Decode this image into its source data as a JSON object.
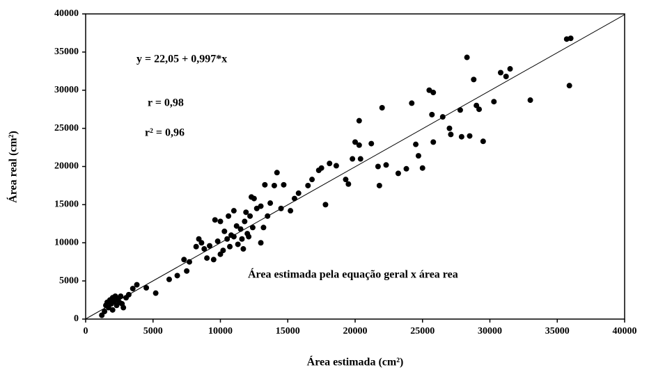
{
  "chart_data": {
    "type": "scatter",
    "x_label": "Área estimada (cm²)",
    "y_label": "Área real (cm²)",
    "annotations": [
      "y = 22,05 + 0,997*x",
      "r = 0,98",
      "r² = 0,96",
      "Área estimada pela equação geral x área rea"
    ],
    "xlim": [
      0,
      40000
    ],
    "ylim": [
      0,
      40000
    ],
    "xticks": [
      0,
      5000,
      10000,
      15000,
      20000,
      25000,
      30000,
      35000,
      40000
    ],
    "yticks": [
      0,
      5000,
      10000,
      15000,
      20000,
      25000,
      30000,
      35000,
      40000
    ],
    "grid": false,
    "color": "#000000",
    "trendline": {
      "intercept": 22.05,
      "slope": 0.997
    },
    "x": [
      1200,
      1400,
      1500,
      1600,
      1700,
      1800,
      1900,
      2000,
      2000,
      2100,
      2200,
      2300,
      2400,
      2500,
      2600,
      2700,
      2800,
      3000,
      3200,
      3500,
      3800,
      4500,
      5200,
      6200,
      6800,
      7300,
      7700,
      7500,
      8200,
      8400,
      8600,
      8800,
      9000,
      9200,
      9500,
      9600,
      9800,
      10000,
      10000,
      10200,
      10300,
      10500,
      10600,
      10700,
      10800,
      11000,
      11000,
      11200,
      11300,
      11500,
      11600,
      11700,
      11800,
      11900,
      12000,
      12100,
      12200,
      12300,
      12400,
      12500,
      12700,
      13000,
      13000,
      13200,
      13300,
      13500,
      13700,
      14000,
      14200,
      14500,
      14700,
      15200,
      15500,
      15800,
      16500,
      16800,
      17300,
      17500,
      17800,
      18100,
      18600,
      19300,
      19500,
      19800,
      20000,
      20300,
      20300,
      20400,
      21200,
      21700,
      21800,
      22000,
      22300,
      23200,
      23800,
      24200,
      24500,
      24700,
      25000,
      25500,
      25800,
      25700,
      25800,
      26500,
      27000,
      27100,
      27800,
      27900,
      28300,
      28500,
      28800,
      29000,
      29200,
      29500,
      30300,
      30800,
      31200,
      31500,
      33000,
      35700,
      36000,
      35900
    ],
    "values": [
      500,
      1000,
      1800,
      2200,
      1500,
      2500,
      2000,
      2800,
      1200,
      2300,
      3000,
      1800,
      2600,
      2200,
      3000,
      2000,
      1500,
      2800,
      3200,
      4000,
      4500,
      4100,
      3400,
      5200,
      5700,
      7800,
      7500,
      6300,
      9500,
      10500,
      10000,
      9200,
      8000,
      9600,
      7800,
      13000,
      10200,
      12800,
      8500,
      9000,
      11500,
      10500,
      13500,
      9500,
      11000,
      14200,
      10800,
      12200,
      9800,
      11800,
      10500,
      9200,
      12800,
      14000,
      11200,
      10800,
      13500,
      16000,
      12000,
      15800,
      14500,
      14800,
      10000,
      12000,
      17600,
      13500,
      15200,
      17500,
      19200,
      14500,
      17600,
      14200,
      15800,
      16500,
      17500,
      18300,
      19500,
      19800,
      15000,
      20400,
      20100,
      18300,
      17700,
      21000,
      23200,
      26000,
      22800,
      21000,
      23000,
      20000,
      17500,
      27700,
      20200,
      19100,
      19700,
      28300,
      22900,
      21400,
      19800,
      30000,
      29700,
      26800,
      23200,
      26500,
      25000,
      24200,
      27400,
      23900,
      34300,
      24000,
      31400,
      28000,
      27500,
      23300,
      28500,
      32300,
      31800,
      32800,
      28700,
      36700,
      36800,
      30600
    ]
  }
}
